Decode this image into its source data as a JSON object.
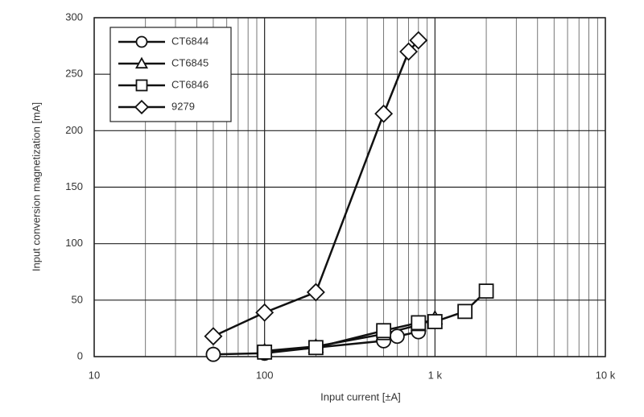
{
  "chart_data": {
    "type": "line",
    "xlabel": "Input current [±A]",
    "ylabel": "Input conversion magnetization [mA]",
    "xscale": "log",
    "xlim": [
      10,
      10000
    ],
    "xticks": [
      {
        "value": 10,
        "label": "10"
      },
      {
        "value": 100,
        "label": "100"
      },
      {
        "value": 1000,
        "label": "1 k"
      },
      {
        "value": 10000,
        "label": "10 k"
      }
    ],
    "x_minor_ticks": [
      20,
      30,
      40,
      50,
      60,
      70,
      80,
      90,
      200,
      300,
      400,
      500,
      600,
      700,
      800,
      900,
      2000,
      3000,
      4000,
      5000,
      6000,
      7000,
      8000,
      9000
    ],
    "ylim": [
      0,
      300
    ],
    "yticks": [
      0,
      50,
      100,
      150,
      200,
      250,
      300
    ],
    "grid": true,
    "legend": "upper-left",
    "series": [
      {
        "name": "CT6844",
        "marker": "circle",
        "color": "#111111",
        "x": [
          50,
          100,
          200,
          500,
          600,
          800
        ],
        "values": [
          2,
          3,
          8,
          14,
          18,
          22
        ]
      },
      {
        "name": "CT6845",
        "marker": "triangle",
        "color": "#111111",
        "x": [
          100,
          200,
          500,
          800,
          1000
        ],
        "values": [
          5,
          9,
          20,
          28,
          34
        ]
      },
      {
        "name": "CT6846",
        "marker": "square",
        "color": "#111111",
        "x": [
          100,
          200,
          500,
          800,
          1000,
          1500,
          2000
        ],
        "values": [
          4,
          8,
          23,
          30,
          31,
          40,
          58
        ]
      },
      {
        "name": "9279",
        "marker": "diamond",
        "color": "#111111",
        "x": [
          50,
          100,
          200,
          500,
          700,
          800
        ],
        "values": [
          18,
          39,
          57,
          215,
          270,
          280
        ]
      }
    ]
  }
}
